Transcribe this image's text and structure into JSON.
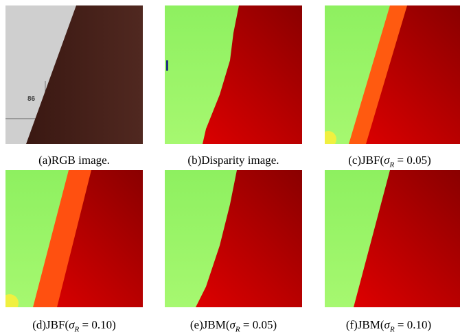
{
  "panels": [
    {
      "label": "(a)RGB image.",
      "image_text": "86"
    },
    {
      "label": "(b)Disparity image."
    },
    {
      "prefix": "(c)JBF(",
      "symbol": "σ",
      "subscript": "R",
      "equation": " = 0.05)"
    },
    {
      "prefix": "(d)JBF(",
      "symbol": "σ",
      "subscript": "R",
      "equation": " = 0.10)"
    },
    {
      "prefix": "(e)JBM(",
      "symbol": "σ",
      "subscript": "R",
      "equation": " = 0.05)"
    },
    {
      "prefix": "(f)JBM(",
      "symbol": "σ",
      "subscript": "R",
      "equation": " = 0.10)"
    }
  ]
}
